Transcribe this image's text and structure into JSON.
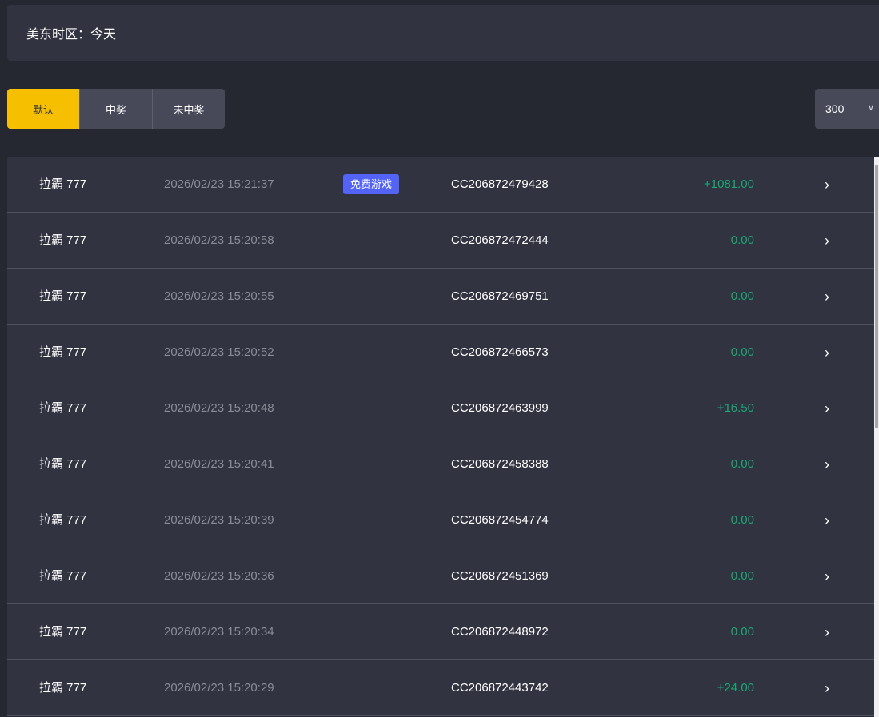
{
  "timezone": "美东时区：今天",
  "tabs": [
    "默认",
    "中奖",
    "未中奖"
  ],
  "page_size": "300",
  "colors": {
    "accent": "#f6c000",
    "win": "#18a873",
    "badge": "#5263f6"
  },
  "rows": [
    {
      "game": "拉霸 777",
      "time": "2026/02/23 15:21:37",
      "badge": "免费游戏",
      "order": "CC206872479428",
      "amount": "+1081.00"
    },
    {
      "game": "拉霸 777",
      "time": "2026/02/23 15:20:58",
      "order": "CC206872472444",
      "amount": "0.00"
    },
    {
      "game": "拉霸 777",
      "time": "2026/02/23 15:20:55",
      "order": "CC206872469751",
      "amount": "0.00"
    },
    {
      "game": "拉霸 777",
      "time": "2026/02/23 15:20:52",
      "order": "CC206872466573",
      "amount": "0.00"
    },
    {
      "game": "拉霸 777",
      "time": "2026/02/23 15:20:48",
      "order": "CC206872463999",
      "amount": "+16.50"
    },
    {
      "game": "拉霸 777",
      "time": "2026/02/23 15:20:41",
      "order": "CC206872458388",
      "amount": "0.00"
    },
    {
      "game": "拉霸 777",
      "time": "2026/02/23 15:20:39",
      "order": "CC206872454774",
      "amount": "0.00"
    },
    {
      "game": "拉霸 777",
      "time": "2026/02/23 15:20:36",
      "order": "CC206872451369",
      "amount": "0.00"
    },
    {
      "game": "拉霸 777",
      "time": "2026/02/23 15:20:34",
      "order": "CC206872448972",
      "amount": "0.00"
    },
    {
      "game": "拉霸 777",
      "time": "2026/02/23 15:20:29",
      "order": "CC206872443742",
      "amount": "+24.00"
    }
  ]
}
